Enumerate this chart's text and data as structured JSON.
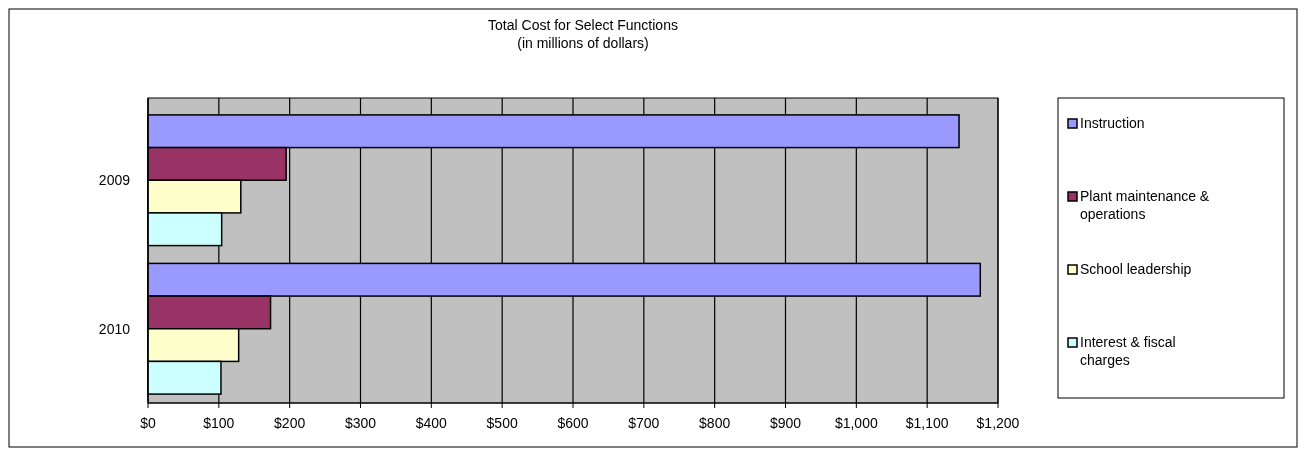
{
  "chart_data": {
    "type": "bar",
    "orientation": "horizontal",
    "title": "Total Cost for Select Functions",
    "subtitle": "(in millions of dollars)",
    "categories": [
      "2009",
      "2010"
    ],
    "series": [
      {
        "name": "Instruction",
        "color": "#9999ff",
        "values": [
          1145,
          1175
        ]
      },
      {
        "name": "Plant maintenance & operations",
        "color": "#993366",
        "values": [
          195,
          173
        ]
      },
      {
        "name": "School leadership",
        "color": "#ffffcc",
        "values": [
          131,
          128
        ]
      },
      {
        "name": "Interest & fiscal charges",
        "color": "#ccffff",
        "values": [
          104,
          103
        ]
      }
    ],
    "xlim": [
      0,
      1200
    ],
    "xticks": [
      {
        "value": 0,
        "label": "$0"
      },
      {
        "value": 100,
        "label": "$100"
      },
      {
        "value": 200,
        "label": "$200"
      },
      {
        "value": 300,
        "label": "$300"
      },
      {
        "value": 400,
        "label": "$400"
      },
      {
        "value": 500,
        "label": "$500"
      },
      {
        "value": 600,
        "label": "$600"
      },
      {
        "value": 700,
        "label": "$700"
      },
      {
        "value": 800,
        "label": "$800"
      },
      {
        "value": 900,
        "label": "$900"
      },
      {
        "value": 1000,
        "label": "$1,000"
      },
      {
        "value": 1100,
        "label": "$1,100"
      },
      {
        "value": 1200,
        "label": "$1,200"
      }
    ],
    "grid": "x",
    "legend": "right"
  }
}
